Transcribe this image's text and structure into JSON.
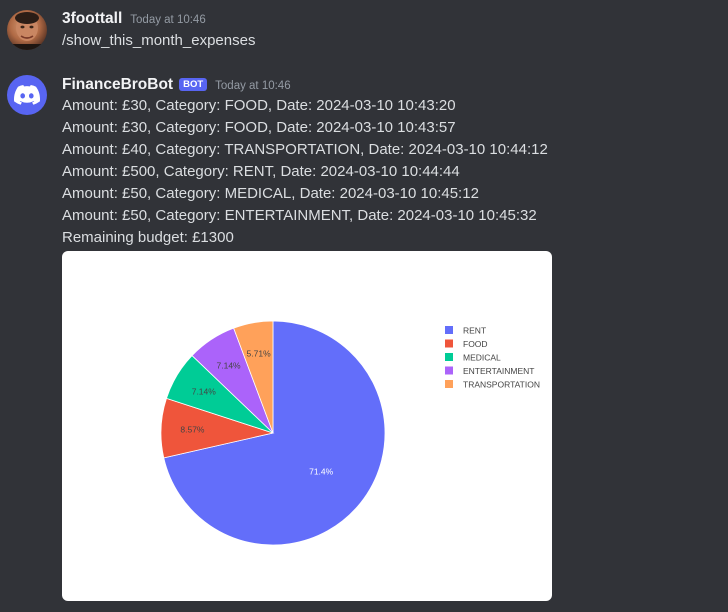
{
  "messages": [
    {
      "username": "3foottall",
      "timestamp": "Today at 10:46",
      "lines": [
        "/show_this_month_expenses"
      ]
    },
    {
      "username": "FinanceBroBot",
      "bot_tag": "BOT",
      "timestamp": "Today at 10:46",
      "lines": [
        "Amount: £30, Category: FOOD, Date: 2024-03-10 10:43:20",
        "Amount: £30, Category: FOOD, Date: 2024-03-10 10:43:57",
        "Amount: £40, Category: TRANSPORTATION, Date: 2024-03-10 10:44:12",
        "Amount: £500, Category: RENT, Date: 2024-03-10 10:44:44",
        "Amount: £50, Category: MEDICAL, Date: 2024-03-10 10:45:12",
        "Amount: £50, Category: ENTERTAINMENT, Date: 2024-03-10 10:45:32",
        "Remaining budget: £1300"
      ]
    }
  ],
  "icons": {
    "user_avatar": "user-avatar-photo",
    "bot_avatar": "discord-logo-icon"
  },
  "colors": {
    "background": "#313338",
    "bot_tag": "#5865f2"
  },
  "chart_data": {
    "type": "pie",
    "categories": [
      "RENT",
      "FOOD",
      "MEDICAL",
      "ENTERTAINMENT",
      "TRANSPORTATION"
    ],
    "values": [
      500,
      60,
      50,
      50,
      40
    ],
    "labels": [
      "71.4%",
      "8.57%",
      "7.14%",
      "7.14%",
      "5.71%"
    ],
    "colors": [
      "#636efa",
      "#ef553b",
      "#00cc96",
      "#ab63fa",
      "#ffa15a"
    ],
    "legend_position": "right",
    "title": ""
  }
}
